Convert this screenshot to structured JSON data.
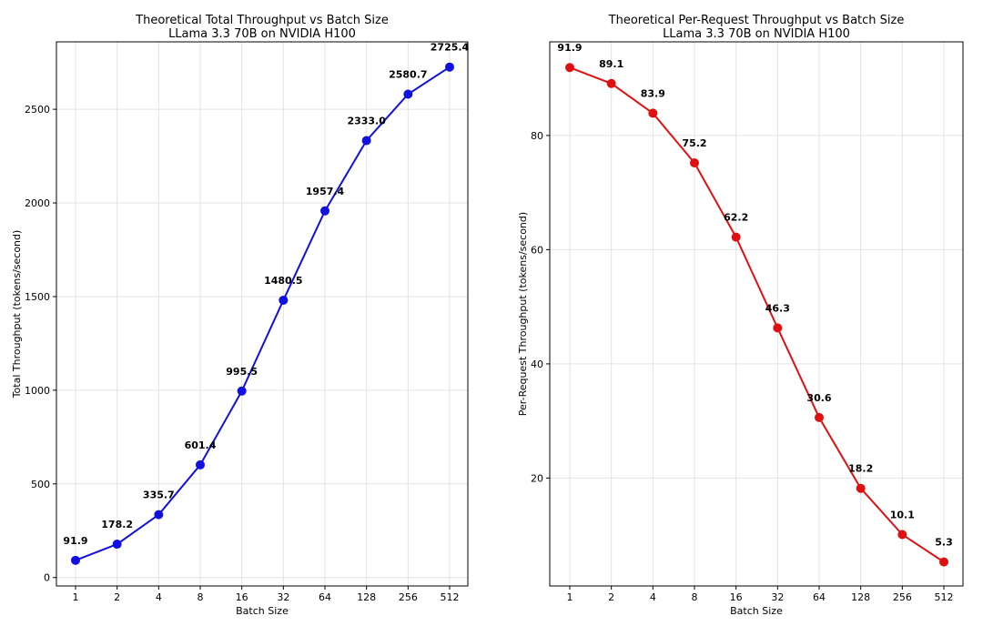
{
  "chart_data": [
    {
      "type": "line",
      "title": "Theoretical Total Throughput vs Batch Size",
      "subtitle": "LLama 3.3 70B on NVIDIA H100",
      "xlabel": "Batch Size",
      "ylabel": "Total Throughput (tokens/second)",
      "categories": [
        "1",
        "2",
        "4",
        "8",
        "16",
        "32",
        "64",
        "128",
        "256",
        "512"
      ],
      "series": [
        {
          "values": [
            91.9,
            178.2,
            335.7,
            601.4,
            995.5,
            1480.5,
            1957.4,
            2333.0,
            2580.7,
            2725.4
          ],
          "labels": [
            "91.9",
            "178.2",
            "335.7",
            "601.4",
            "995.5",
            "1480.5",
            "1957.4",
            "2333.0",
            "2580.7",
            "2725.4"
          ]
        }
      ],
      "yticks": [
        0,
        500,
        1000,
        1500,
        2000,
        2500
      ],
      "ylim": [
        -45,
        2860
      ],
      "grid": true,
      "color": "#1010e0"
    },
    {
      "type": "line",
      "title": "Theoretical Per-Request Throughput vs Batch Size",
      "subtitle": "LLama 3.3 70B on NVIDIA H100",
      "xlabel": "Batch Size",
      "ylabel": "Per-Request Throughput (tokens/second)",
      "categories": [
        "1",
        "2",
        "4",
        "8",
        "16",
        "32",
        "64",
        "128",
        "256",
        "512"
      ],
      "series": [
        {
          "values": [
            91.9,
            89.1,
            83.9,
            75.2,
            62.2,
            46.3,
            30.6,
            18.2,
            10.1,
            5.3
          ],
          "labels": [
            "91.9",
            "89.1",
            "83.9",
            "75.2",
            "62.2",
            "46.3",
            "30.6",
            "18.2",
            "10.1",
            "5.3"
          ]
        }
      ],
      "yticks": [
        20,
        40,
        60,
        80
      ],
      "ylim": [
        1.1,
        96.4
      ],
      "grid": true,
      "color": "#e01010"
    }
  ]
}
